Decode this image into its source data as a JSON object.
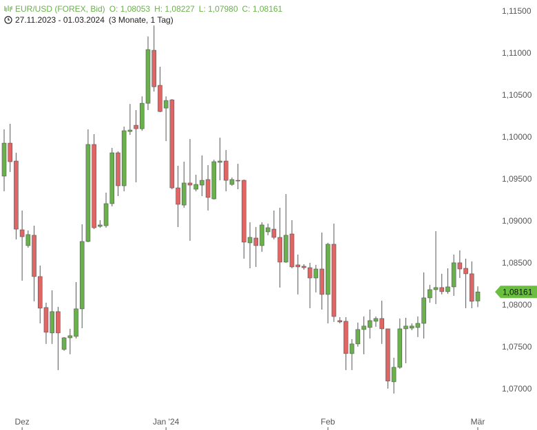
{
  "header": {
    "title": "EUR/USD (FOREX, Bid)",
    "ohlc": [
      "O: 1,08053",
      "H: 1,08227",
      "L: 1,07980",
      "C: 1,08161"
    ],
    "range": "27.11.2023 - 01.03.2024",
    "period": "(3 Monate, 1 Tag)"
  },
  "chart_data": {
    "type": "candlestick",
    "categories": [
      null,
      null,
      null,
      "Dez",
      null,
      null,
      null,
      null,
      null,
      null,
      null,
      null,
      null,
      null,
      null,
      null,
      null,
      null,
      null,
      null,
      null,
      null,
      null,
      null,
      null,
      null,
      null,
      "Jan '24",
      null,
      null,
      null,
      null,
      null,
      null,
      null,
      null,
      null,
      null,
      null,
      null,
      null,
      null,
      null,
      null,
      null,
      null,
      null,
      null,
      null,
      null,
      null,
      null,
      null,
      null,
      "Feb",
      null,
      null,
      null,
      null,
      null,
      null,
      null,
      null,
      null,
      null,
      null,
      null,
      null,
      null,
      null,
      null,
      null,
      null,
      null,
      null,
      null,
      null,
      null,
      null,
      "Mär"
    ],
    "open": [
      1.09541,
      1.09934,
      1.09721,
      1.08901,
      1.08713,
      1.08836,
      1.08344,
      1.07975,
      1.07672,
      1.07926,
      1.07475,
      1.07614,
      1.07631,
      1.07959,
      1.08762,
      1.09918,
      1.08942,
      1.0895,
      1.09213,
      1.09819,
      1.09426,
      1.10073,
      1.10147,
      1.10106,
      1.10409,
      1.11041,
      1.10623,
      1.10352,
      1.1045,
      1.09401,
      1.09196,
      1.09459,
      1.09385,
      1.09434,
      1.095,
      1.0927,
      1.09705,
      1.09721,
      1.09442,
      1.09491,
      1.09491,
      1.08746,
      1.08803,
      1.08713,
      1.08877,
      1.08909,
      1.08811,
      1.08516,
      1.08852,
      1.08483,
      1.08467,
      1.0845,
      1.08327,
      1.08434,
      1.08131,
      1.08729,
      1.07819,
      1.07811,
      1.07426,
      1.07541,
      1.07713,
      1.07737,
      1.07811,
      1.07844,
      1.07721,
      1.0709,
      1.07262,
      1.07721,
      1.07729,
      1.07737,
      1.07786,
      1.0809,
      1.08188,
      1.08213,
      1.08164,
      1.08221,
      1.08508,
      1.08442,
      1.08377,
      1.08053
    ],
    "high": [
      1.10098,
      1.10164,
      1.09819,
      1.09131,
      1.08893,
      1.0895,
      1.08475,
      1.08032,
      1.0818,
      1.07983,
      1.07623,
      1.07721,
      1.08278,
      1.08967,
      1.10098,
      1.10041,
      1.09016,
      1.09344,
      1.09877,
      1.09836,
      1.10131,
      1.10401,
      1.10328,
      1.10491,
      1.11205,
      1.11336,
      1.10844,
      1.10491,
      1.10459,
      1.09664,
      1.09713,
      1.09983,
      1.09557,
      1.09787,
      1.09672,
      1.09737,
      1.09999,
      1.09852,
      1.09524,
      1.09688,
      1.095,
      1.08991,
      1.08934,
      1.08991,
      1.08975,
      1.09131,
      1.09164,
      1.09327,
      1.09016,
      1.08606,
      1.08491,
      1.08508,
      1.08483,
      1.08868,
      1.08746,
      1.08975,
      1.0786,
      1.0786,
      1.07598,
      1.07795,
      1.07868,
      1.0795,
      1.07868,
      1.08057,
      1.07721,
      1.07377,
      1.07844,
      1.07852,
      1.07786,
      1.07868,
      1.08393,
      1.08245,
      1.08885,
      1.08377,
      1.08442,
      1.08606,
      1.08655,
      1.08557,
      1.08524,
      1.08227
    ],
    "low": [
      1.0936,
      1.0959,
      1.08786,
      1.08295,
      1.08688,
      1.08049,
      1.07786,
      1.07541,
      1.07541,
      1.07229,
      1.07459,
      1.07418,
      1.07606,
      1.07729,
      1.08754,
      1.08909,
      1.08926,
      1.08926,
      1.0918,
      1.09303,
      1.0936,
      1.10032,
      1.09467,
      1.10082,
      1.10328,
      1.10549,
      1.10303,
      1.09959,
      1.09385,
      1.08934,
      1.09164,
      1.0877,
      1.0936,
      1.09303,
      1.09131,
      1.09262,
      1.09491,
      1.0936,
      1.09426,
      1.09385,
      1.08557,
      1.08442,
      1.08459,
      1.08639,
      1.08836,
      1.08786,
      1.08213,
      1.08508,
      1.08442,
      1.08131,
      1.08426,
      1.07967,
      1.08155,
      1.0795,
      1.07786,
      1.07803,
      1.07786,
      1.07229,
      1.07229,
      1.07508,
      1.07418,
      1.07606,
      1.07745,
      1.07541,
      1.07008,
      1.0695,
      1.07245,
      1.07311,
      1.07704,
      1.07623,
      1.07606,
      1.08032,
      1.08016,
      1.08131,
      1.08139,
      1.08114,
      1.08327,
      1.07967,
      1.07967,
      1.0798
    ],
    "close": [
      1.09934,
      1.09713,
      1.08909,
      1.08819,
      1.08844,
      1.08344,
      1.07967,
      1.0768,
      1.07926,
      1.07672,
      1.07614,
      1.07639,
      1.07959,
      1.08762,
      1.09918,
      1.08926,
      1.08959,
      1.09213,
      1.09819,
      1.09426,
      1.10082,
      1.1009,
      1.10106,
      1.10409,
      1.11049,
      1.10606,
      1.10311,
      1.10442,
      1.09401,
      1.09205,
      1.09459,
      1.09434,
      1.09442,
      1.09491,
      1.09287,
      1.09713,
      1.09721,
      1.09491,
      1.095,
      1.09483,
      1.08754,
      1.08811,
      1.08713,
      1.08959,
      1.08926,
      1.08811,
      1.08516,
      1.08836,
      1.08459,
      1.08459,
      1.0845,
      1.08327,
      1.08434,
      1.08131,
      1.08729,
      1.07868,
      1.07803,
      1.07426,
      1.07541,
      1.07713,
      1.07754,
      1.07819,
      1.07844,
      1.07721,
      1.07098,
      1.07262,
      1.07721,
      1.07754,
      1.07754,
      1.07786,
      1.0809,
      1.08188,
      1.08213,
      1.08164,
      1.08221,
      1.08508,
      1.08434,
      1.08377,
      1.08049,
      1.08161
    ],
    "up_color": "#6ab04c",
    "down_color": "#e06666",
    "ylim": [
      1.0672,
      1.1164
    ],
    "yticks": [
      {
        "value": 1.07,
        "label": "1,07000"
      },
      {
        "value": 1.075,
        "label": "1,07500"
      },
      {
        "value": 1.08,
        "label": "1,08000"
      },
      {
        "value": 1.085,
        "label": "1,08500"
      },
      {
        "value": 1.09,
        "label": "1,09000"
      },
      {
        "value": 1.095,
        "label": "1,09500"
      },
      {
        "value": 1.1,
        "label": "1,10000"
      },
      {
        "value": 1.105,
        "label": "1,10500"
      },
      {
        "value": 1.11,
        "label": "1,11000"
      },
      {
        "value": 1.115,
        "label": "1,11500"
      }
    ],
    "grid": false,
    "last_price": {
      "value": 1.08161,
      "label": "1,08161",
      "color": "#6abf40"
    }
  }
}
